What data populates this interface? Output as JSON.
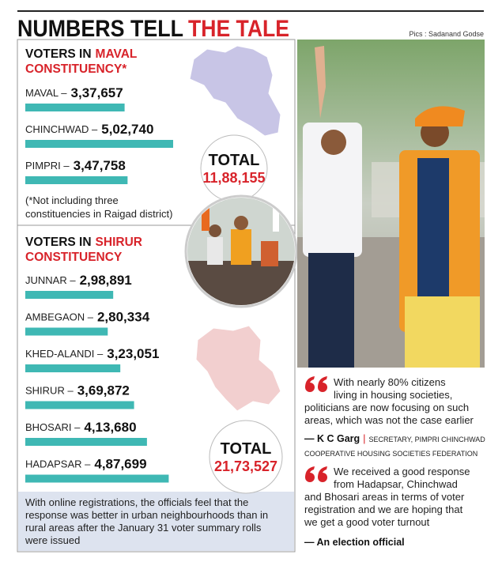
{
  "header": {
    "title_black": "NUMBERS TELL",
    "title_red": "THE TALE",
    "credit": "Pics : Sadanand Godse"
  },
  "maval": {
    "line1_black": "VOTERS IN",
    "line1_red": "MAVAL",
    "line2_red": "CONSTITUENCY*",
    "items": [
      {
        "name": "MAVAL –",
        "value": 337657,
        "label": "3,37,657"
      },
      {
        "name": "CHINCHWAD –",
        "value": 502740,
        "label": "5,02,740"
      },
      {
        "name": "PIMPRI –",
        "value": 347758,
        "label": "3,47,758"
      }
    ],
    "total": {
      "label": "TOTAL",
      "value_label": "11,88,155"
    },
    "note": [
      "(*Not including three",
      "constituencies in Raigad district)"
    ]
  },
  "shirur": {
    "line1_black": "VOTERS IN",
    "line1_red": "SHIRUR",
    "line2_red": "CONSTITUENCY",
    "items": [
      {
        "name": "JUNNAR –",
        "value": 298891,
        "label": "2,98,891"
      },
      {
        "name": "AMBEGAON –",
        "value": 280334,
        "label": "2,80,334"
      },
      {
        "name": "KHED-ALANDI –",
        "value": 323051,
        "label": "3,23,051"
      },
      {
        "name": "SHIRUR –",
        "value": 369872,
        "label": "3,69,872"
      },
      {
        "name": "BHOSARI –",
        "value": 413680,
        "label": "4,13,680"
      },
      {
        "name": "HADAPSAR –",
        "value": 487699,
        "label": "4,87,699"
      }
    ],
    "total": {
      "label": "TOTAL",
      "value_label": "21,73,527"
    }
  },
  "footer": [
    "With online registrations, the officials feel that the",
    "response was better in urban neighbourhoods than in",
    "rural areas after the January 31 voter summary rolls",
    "were issued"
  ],
  "quotes": [
    {
      "lines": [
        "With nearly 80% citizens",
        "living in housing societies,",
        "politicians are now focusing on such",
        "areas, which was not the case earlier"
      ],
      "name": "— K C Garg",
      "separator": "|",
      "role": [
        "SECRETARY, PIMPRI CHINCHWAD",
        "COOPERATIVE HOUSING SOCIETIES FEDERATION"
      ]
    },
    {
      "lines": [
        "We received a good response",
        "from Hadapsar, Chinchwad",
        "and Bhosari areas in terms of voter",
        "registration and we are hoping that",
        "we get a good voter turnout"
      ],
      "name": "— An election official"
    }
  ]
}
